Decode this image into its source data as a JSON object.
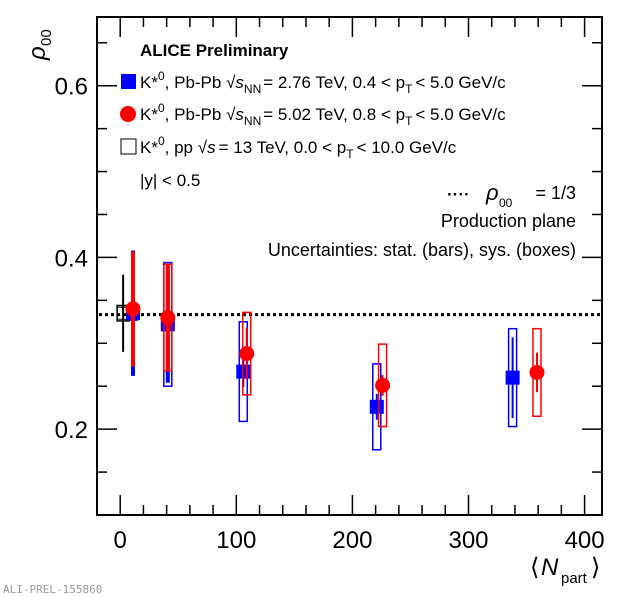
{
  "chart_data": {
    "type": "scatter",
    "title": "ALICE Preliminary",
    "xlabel": "⟨N_part⟩",
    "ylabel": "ρ_00",
    "xlim": [
      -20,
      415
    ],
    "ylim": [
      0.1,
      0.68
    ],
    "x_ticks": [
      "0",
      "100",
      "200",
      "300",
      "400"
    ],
    "x_tick_values": [
      0,
      100,
      200,
      300,
      400
    ],
    "y_ticks": [
      "0.2",
      "0.4",
      "0.6"
    ],
    "y_tick_values": [
      0.2,
      0.4,
      0.6
    ],
    "grid": false,
    "reference_line": {
      "y": 0.3333,
      "style": "dotted",
      "label": "ρ00 = 1/3"
    },
    "annotations": [
      "Production plane",
      "Uncertainties: stat. (bars), sys. (boxes)",
      "|y| < 0.5"
    ],
    "legend_position": "top-left",
    "series": [
      {
        "name": "K*0, Pb-Pb √sNN = 2.76 TeV, 0.4 < pT < 5.0 GeV/c",
        "color": "#0000ff",
        "marker": "filled-square",
        "x": [
          11,
          41,
          106,
          221,
          338
        ],
        "y": [
          0.335,
          0.322,
          0.267,
          0.226,
          0.26
        ],
        "stat_err": [
          0.073,
          0.068,
          0.018,
          0.015,
          0.047
        ],
        "sys_err": [
          0.008,
          0.072,
          0.058,
          0.05,
          0.057
        ]
      },
      {
        "name": "K*0, Pb-Pb √sNN = 5.02 TeV, 0.8 < pT < 5.0 GeV/c",
        "color": "#ff0000",
        "marker": "filled-circle",
        "x": [
          11,
          41,
          109,
          226,
          359
        ],
        "y": [
          0.34,
          0.33,
          0.288,
          0.251,
          0.266
        ],
        "stat_err": [
          0.067,
          0.062,
          0.03,
          0.012,
          0.023
        ],
        "sys_err": [
          0.005,
          0.062,
          0.048,
          0.048,
          0.051
        ]
      },
      {
        "name": "K*0, pp √s = 13 TeV, 0.0 < pT < 10.0 GeV/c",
        "color": "#000000",
        "marker": "open-square",
        "x": [
          2.5
        ],
        "y": [
          0.335
        ],
        "stat_err": [
          0.045
        ],
        "sys_err": [
          0.009
        ]
      }
    ],
    "legend": {
      "header": "ALICE Preliminary",
      "entries": [
        {
          "prefix": "K*0, Pb-Pb",
          "energy": "= 2.76 TeV, 0.4 < p",
          "tail": "< 5.0 GeV/c",
          "sqrt": "s",
          "sub": "NN"
        },
        {
          "prefix": "K*0, Pb-Pb",
          "energy": "= 5.02 TeV, 0.8 < p",
          "tail": "< 5.0 GeV/c",
          "sqrt": "s",
          "sub": "NN"
        },
        {
          "prefix": "K*0, pp",
          "energy": "= 13 TeV, 0.0 < p",
          "tail": "< 10.0 GeV/c",
          "sqrt": "s",
          "sub": ""
        }
      ],
      "rapidity": "|y| < 0.5"
    }
  },
  "labels": {
    "ylabel_main": "ρ",
    "ylabel_sub": "00",
    "xlabel_main": "N",
    "xlabel_sub": "part",
    "xlabel_open": "⟨",
    "xlabel_close": "⟩",
    "ref_dash": "····",
    "ref_rho": "ρ",
    "ref_sub": "00",
    "ref_value": "= 1/3",
    "production_plane": "Production plane",
    "uncertainties": "Uncertainties: stat. (bars), sys. (boxes)",
    "kstar": "K*",
    "kstar_sup": "0",
    "pt_sub": "T",
    "watermark": "ALI-PREL-155860"
  }
}
